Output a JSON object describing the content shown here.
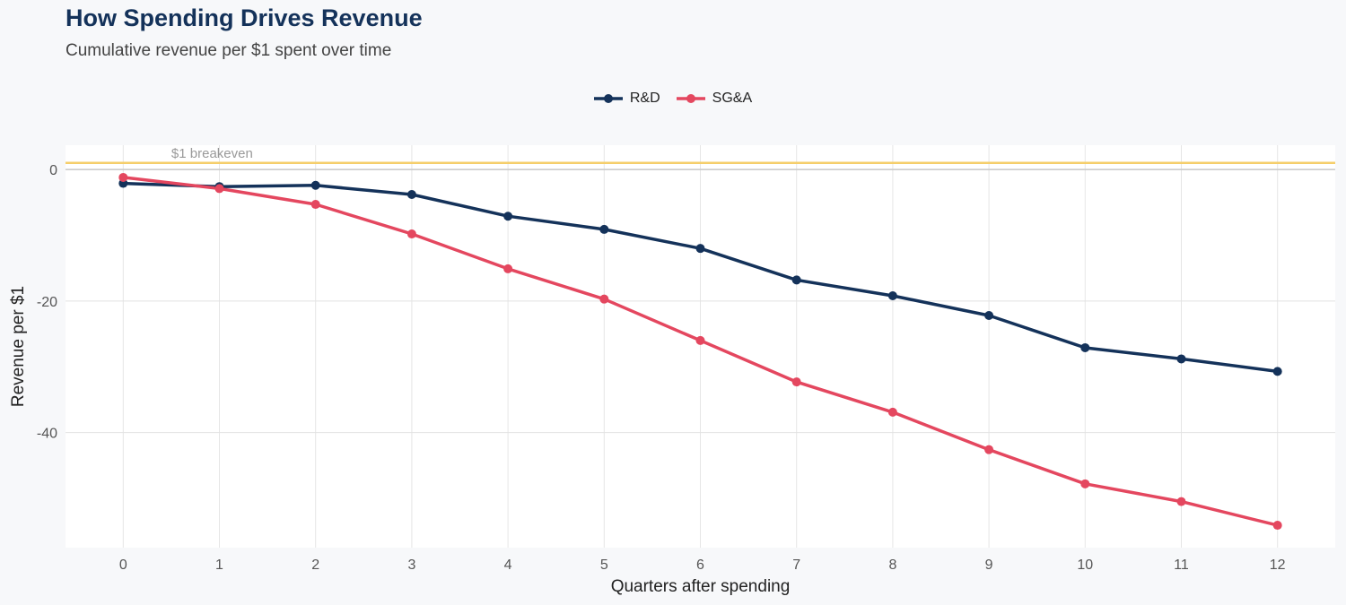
{
  "title": "How Spending Drives Revenue",
  "subtitle": "Cumulative revenue per $1 spent over time",
  "chart_data": {
    "type": "line",
    "xlabel": "Quarters after spending",
    "ylabel": "Revenue per $1",
    "x": [
      0,
      1,
      2,
      3,
      4,
      5,
      6,
      7,
      8,
      9,
      10,
      11,
      12
    ],
    "series": [
      {
        "name": "R&D",
        "color": "#14325a",
        "values": [
          -2.1,
          -2.6,
          -2.4,
          -3.8,
          -7.1,
          -9.1,
          -12.0,
          -16.8,
          -19.2,
          -22.2,
          -27.1,
          -28.8,
          -30.7
        ]
      },
      {
        "name": "SG&A",
        "color": "#e4475f",
        "values": [
          -1.2,
          -2.9,
          -5.3,
          -9.8,
          -15.1,
          -19.7,
          -26.0,
          -32.3,
          -36.9,
          -42.6,
          -47.8,
          -50.5,
          -54.1
        ]
      }
    ],
    "xlim": [
      -0.6,
      12.6
    ],
    "ylim": [
      -57.5,
      3.7
    ],
    "yticks": [
      0,
      -20,
      -40
    ],
    "reference_line": {
      "value": 1,
      "label": "$1 breakeven",
      "color": "#f5ce6a"
    },
    "zero_line": {
      "value": 0,
      "color": "#c8c8c8"
    },
    "legend_position": "top"
  }
}
